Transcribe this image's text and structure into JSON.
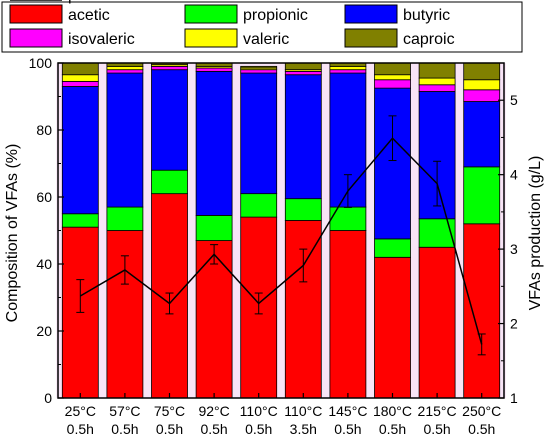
{
  "chart_data": {
    "type": "bar",
    "stacked": true,
    "categories": [
      [
        "25°C",
        "0.5h"
      ],
      [
        "57°C",
        "0.5h"
      ],
      [
        "75°C",
        "0.5h"
      ],
      [
        "92°C",
        "0.5h"
      ],
      [
        "110°C",
        "0.5h"
      ],
      [
        "110°C",
        "3.5h"
      ],
      [
        "145°C",
        "0.5h"
      ],
      [
        "180°C",
        "0.5h"
      ],
      [
        "215°C",
        "0.5h"
      ],
      [
        "250°C",
        "0.5h"
      ]
    ],
    "series": [
      {
        "name": "acetic",
        "color": "#ff0000",
        "values": [
          51,
          50,
          61,
          47,
          54,
          53,
          50,
          42,
          45,
          52
        ]
      },
      {
        "name": "propionic",
        "color": "#00ff00",
        "values": [
          4,
          7,
          7,
          7.5,
          7,
          6.5,
          7,
          5.5,
          8.5,
          17
        ]
      },
      {
        "name": "butyric",
        "color": "#0000ff",
        "values": [
          38,
          40,
          30,
          43,
          36,
          37,
          40,
          45,
          38,
          19.5
        ]
      },
      {
        "name": "isovaleric",
        "color": "#ff00ff",
        "values": [
          1.5,
          1,
          1,
          1,
          1,
          1,
          1,
          2.5,
          2,
          3.5
        ]
      },
      {
        "name": "valeric",
        "color": "#ffff00",
        "values": [
          2,
          1,
          0.5,
          0.5,
          0.5,
          0.5,
          1,
          1.5,
          2,
          3
        ]
      },
      {
        "name": "caproic",
        "color": "#808000",
        "values": [
          3.5,
          1,
          0.5,
          1,
          0.5,
          2,
          1,
          3.5,
          4.5,
          5
        ]
      }
    ],
    "line": {
      "name": "production of VFAs",
      "color": "#000000",
      "axis": "right",
      "values": [
        2.37,
        2.72,
        2.27,
        2.93,
        2.27,
        2.78,
        3.78,
        4.49,
        3.88,
        1.72
      ],
      "errors": [
        0.22,
        0.19,
        0.14,
        0.13,
        0.14,
        0.22,
        0.22,
        0.3,
        0.3,
        0.14
      ]
    },
    "ylabel": "Composition of VFAs (%)",
    "y2label": "VFAs production (g/L)",
    "ylim": [
      0,
      100
    ],
    "y2lim": [
      1,
      5.5
    ],
    "yticks": [
      0,
      20,
      40,
      60,
      80,
      100
    ],
    "y2ticks": [
      1,
      2,
      3,
      4,
      5
    ],
    "legend_position": "top"
  }
}
